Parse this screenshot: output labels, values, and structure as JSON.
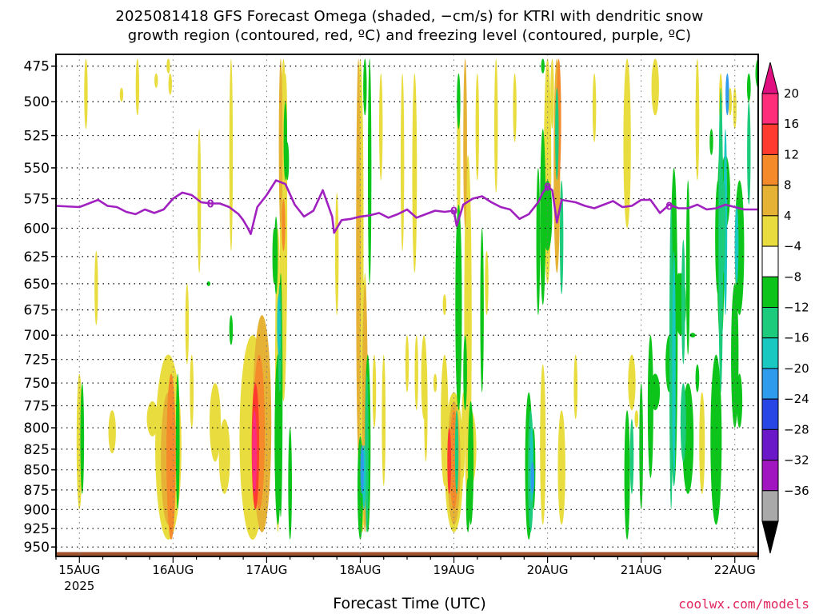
{
  "title_line1": "2025081418 GFS Forecast Omega (shaded, −cm/s) for KTRI with dendritic snow",
  "title_line2": "growth region (contoured, red, ºC) and freezing level (contoured, purple, ºC)",
  "credit": "coolwx.com/models",
  "chart_data": {
    "type": "heatmap",
    "title": "2025081418 GFS Forecast Omega (shaded, −cm/s) for KTRI with dendritic snow growth region (contoured, red, ºC) and freezing level (contoured, purple, ºC)",
    "xlabel": "Forecast Time (UTC)",
    "ylabel": "",
    "x_ticks": [
      "15AUG",
      "16AUG",
      "17AUG",
      "18AUG",
      "19AUG",
      "20AUG",
      "21AUG",
      "22AUG"
    ],
    "x_tick_year": "2025",
    "x_range_days": [
      -0.25,
      7.25
    ],
    "y_ticks": [
      475,
      500,
      525,
      550,
      575,
      600,
      625,
      650,
      675,
      700,
      725,
      750,
      775,
      800,
      825,
      850,
      875,
      900,
      925,
      950
    ],
    "y_range_hpa": [
      467,
      963
    ],
    "y_scale": "log-pressure",
    "grid": true,
    "colorbar": {
      "labels": [
        "20",
        "16",
        "12",
        "8",
        "4",
        "−4",
        "−8",
        "−12",
        "−16",
        "−20",
        "−24",
        "−28",
        "−32",
        "−36"
      ],
      "colors": [
        "#ff2d7a",
        "#ff3b30",
        "#f58a2a",
        "#e5b236",
        "#e8dc3e",
        "#ffffff",
        "#0cc41a",
        "#1ccc7c",
        "#19c8c0",
        "#2f9bec",
        "#2846e6",
        "#6a18c8",
        "#a015c0",
        "#a9a9a9"
      ],
      "top_color": "#e01080",
      "bottom_color": "#000000"
    },
    "freezing_level": {
      "label": "0",
      "color": "#a020c0",
      "points": [
        [
          -0.25,
          581
        ],
        [
          0,
          582
        ],
        [
          0.1,
          579
        ],
        [
          0.2,
          576
        ],
        [
          0.3,
          581
        ],
        [
          0.4,
          582
        ],
        [
          0.5,
          586
        ],
        [
          0.6,
          588
        ],
        [
          0.7,
          584
        ],
        [
          0.8,
          587
        ],
        [
          0.9,
          584
        ],
        [
          1.0,
          575
        ],
        [
          1.1,
          570
        ],
        [
          1.2,
          572
        ],
        [
          1.3,
          578
        ],
        [
          1.4,
          579
        ],
        [
          1.5,
          579
        ],
        [
          1.6,
          582
        ],
        [
          1.7,
          588
        ],
        [
          1.75,
          593
        ],
        [
          1.8,
          600
        ],
        [
          1.83,
          605
        ],
        [
          1.9,
          582
        ],
        [
          2.0,
          572
        ],
        [
          2.1,
          560
        ],
        [
          2.2,
          563
        ],
        [
          2.3,
          580
        ],
        [
          2.4,
          590
        ],
        [
          2.5,
          585
        ],
        [
          2.6,
          568
        ],
        [
          2.7,
          590
        ],
        [
          2.72,
          604
        ],
        [
          2.8,
          593
        ],
        [
          2.9,
          592
        ],
        [
          3.0,
          590
        ],
        [
          3.1,
          589
        ],
        [
          3.2,
          587
        ],
        [
          3.3,
          591
        ],
        [
          3.4,
          588
        ],
        [
          3.5,
          584
        ],
        [
          3.6,
          591
        ],
        [
          3.7,
          588
        ],
        [
          3.8,
          585
        ],
        [
          3.9,
          586
        ],
        [
          4.0,
          585
        ],
        [
          4.03,
          598
        ],
        [
          4.1,
          580
        ],
        [
          4.2,
          575
        ],
        [
          4.3,
          573
        ],
        [
          4.4,
          578
        ],
        [
          4.5,
          582
        ],
        [
          4.6,
          584
        ],
        [
          4.7,
          592
        ],
        [
          4.8,
          588
        ],
        [
          4.9,
          578
        ],
        [
          4.95,
          570
        ],
        [
          5.0,
          565
        ],
        [
          5.05,
          568
        ],
        [
          5.1,
          595
        ],
        [
          5.15,
          576
        ],
        [
          5.3,
          578
        ],
        [
          5.4,
          581
        ],
        [
          5.5,
          583
        ],
        [
          5.6,
          580
        ],
        [
          5.7,
          577
        ],
        [
          5.8,
          582
        ],
        [
          5.9,
          581
        ],
        [
          6.0,
          576
        ],
        [
          6.1,
          576
        ],
        [
          6.2,
          587
        ],
        [
          6.3,
          580
        ],
        [
          6.4,
          583
        ],
        [
          6.5,
          583
        ],
        [
          6.6,
          580
        ],
        [
          6.7,
          584
        ],
        [
          6.8,
          583
        ],
        [
          6.9,
          580
        ],
        [
          7.0,
          582
        ],
        [
          7.1,
          584
        ],
        [
          7.25,
          584
        ]
      ]
    },
    "surface_hpa": 957
  }
}
